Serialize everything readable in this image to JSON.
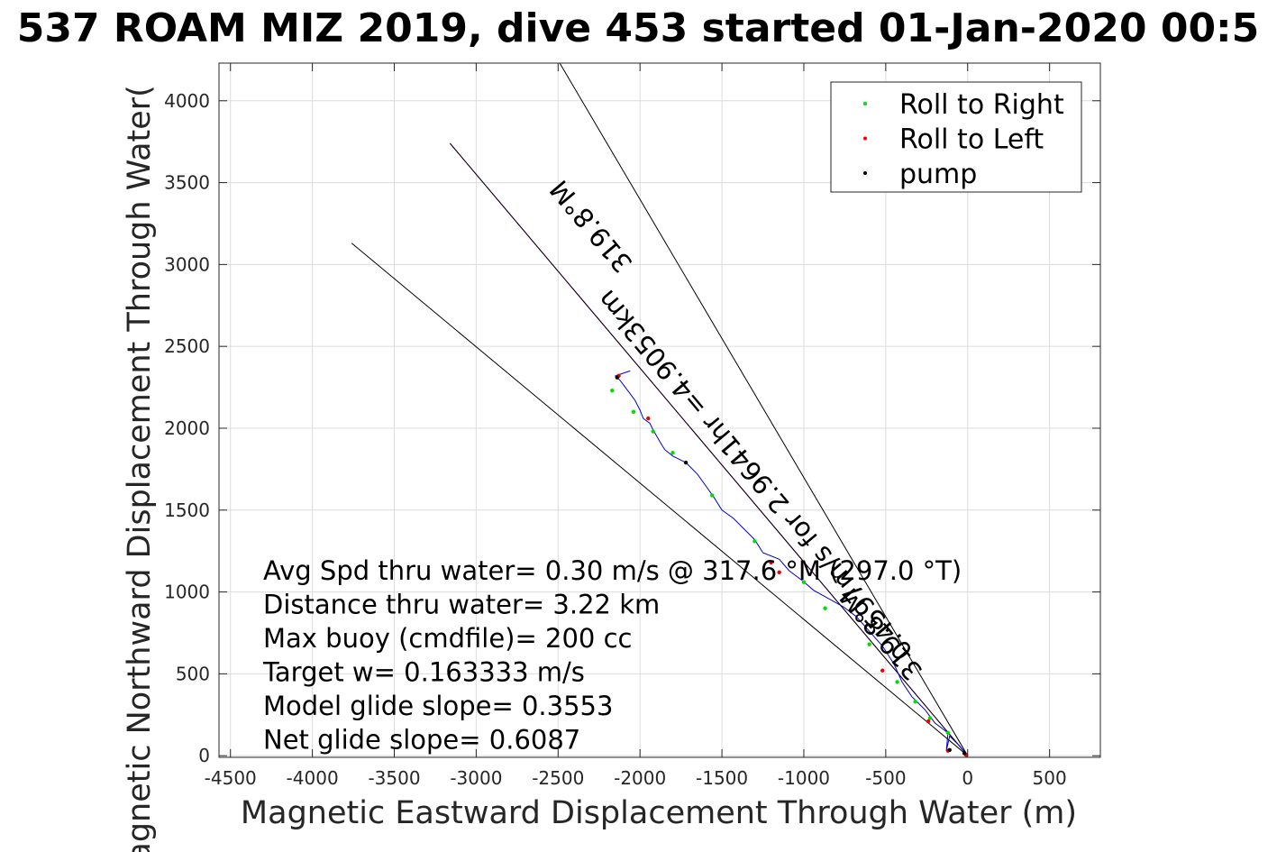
{
  "chart_data": {
    "type": "scatter",
    "title": "537 ROAM MIZ 2019, dive 453 started 01-Jan-2020 00:5",
    "xlabel": "Magnetic Eastward Displacement Through Water (m)",
    "ylabel": "Magnetic Northward Displacement Through Water(",
    "xlim": [
      -4570,
      810
    ],
    "ylim": [
      -10,
      4230
    ],
    "x_ticks": [
      -4500,
      -4000,
      -3500,
      -3000,
      -2500,
      -2000,
      -1500,
      -1000,
      -500,
      0,
      500
    ],
    "x_tick_labels": [
      "-4500",
      "-4000",
      "-3500",
      "-3000",
      "-2500",
      "-2000",
      "-1500",
      "-1000",
      "-500",
      "0",
      "500"
    ],
    "y_ticks": [
      0,
      500,
      1000,
      1500,
      2000,
      2500,
      3000,
      3500,
      4000
    ],
    "y_tick_labels": [
      "0",
      "500",
      "1000",
      "1500",
      "2000",
      "2500",
      "3000",
      "3500",
      "4000"
    ],
    "grid": true,
    "legend_position": "top-right",
    "legend": [
      {
        "label": "Roll to Right",
        "color": "#00dd00"
      },
      {
        "label": "Roll to Left",
        "color": "#ee0000"
      },
      {
        "label": "pump",
        "color": "#000000"
      }
    ],
    "track": {
      "color": "#0000cc",
      "x": [
        0,
        -50,
        -110,
        -130,
        -120,
        -200,
        -260,
        -340,
        -400,
        -450,
        -520,
        -600,
        -680,
        -760,
        -850,
        -940,
        -1010,
        -1090,
        -1150,
        -1250,
        -1300,
        -1360,
        -1430,
        -1500,
        -1550,
        -1600,
        -1650,
        -1720,
        -1800,
        -1850,
        -1880,
        -1920,
        -1940,
        -1980,
        -2000,
        -2030,
        -2060,
        -2090,
        -2120,
        -2150,
        -2120,
        -2060
      ],
      "y": [
        0,
        60,
        120,
        30,
        140,
        200,
        280,
        360,
        450,
        560,
        670,
        760,
        850,
        910,
        960,
        1010,
        1070,
        1130,
        1200,
        1240,
        1320,
        1380,
        1450,
        1500,
        1580,
        1650,
        1720,
        1790,
        1830,
        1870,
        1920,
        1990,
        2030,
        2060,
        2110,
        2170,
        2210,
        2250,
        2290,
        2320,
        2330,
        2350
      ]
    },
    "series": [
      {
        "name": "Roll to Right",
        "color": "#00dd00",
        "x": [
          -120,
          -230,
          -320,
          -430,
          -600,
          -870,
          -1000,
          -1300,
          -1560,
          -1800,
          -1920,
          -2040,
          -2170
        ],
        "y": [
          140,
          230,
          330,
          450,
          680,
          900,
          1060,
          1310,
          1590,
          1850,
          1980,
          2100,
          2230
        ]
      },
      {
        "name": "Roll to Left",
        "color": "#ee0000",
        "x": [
          -10,
          -120,
          -240,
          -520,
          -1150,
          -1200,
          -1950,
          -2130
        ],
        "y": [
          5,
          30,
          210,
          520,
          1120,
          1180,
          2060,
          2320
        ]
      },
      {
        "name": "pump",
        "color": "#000000",
        "x": [
          -20,
          -110,
          -1720,
          -2140
        ],
        "y": [
          15,
          35,
          1790,
          2310
        ]
      }
    ],
    "reference_lines": [
      {
        "color": "#cc00cc",
        "x": [
          0,
          -3160
        ],
        "y": [
          0,
          3740
        ]
      },
      {
        "color": "#000000",
        "x": [
          0,
          -3160
        ],
        "y": [
          0,
          3740
        ]
      },
      {
        "color": "#000000",
        "x": [
          0,
          -2490
        ],
        "y": [
          0,
          4230
        ]
      },
      {
        "color": "#000000",
        "x": [
          0,
          -3760
        ],
        "y": [
          0,
          3130
        ]
      }
    ],
    "annotations": [
      {
        "text": "319.8°M",
        "x": -2290,
        "y": 3240,
        "rotation": -130
      },
      {
        "text": "0.4597m/s for 2.9641hr =4.9053km",
        "x": -1290,
        "y": 1720,
        "rotation": -130
      },
      {
        "text": "319.8°M",
        "x": -520,
        "y": 750,
        "rotation": -130
      }
    ],
    "info_lines": [
      "Avg Spd thru water=  0.30 m/s @ 317.6 °M (297.0 °T)",
      "Distance thru water=  3.22 km",
      "Max buoy (cmdfile)= 200 cc",
      "Target w= 0.163333 m/s",
      "Model glide slope= 0.3553",
      "Net glide slope= 0.6087"
    ]
  }
}
